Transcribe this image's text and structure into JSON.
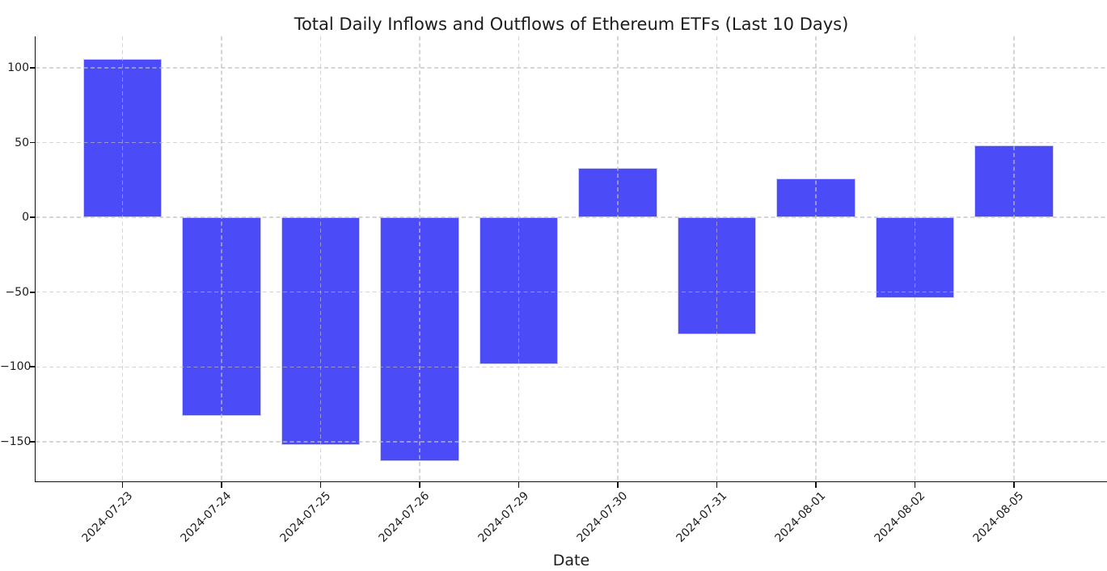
{
  "chart_data": {
    "type": "bar",
    "title": "Total Daily Inflows and Outflows of Ethereum ETFs (Last 10 Days)",
    "xlabel": "Date",
    "ylabel": "",
    "categories": [
      "2024-07-23",
      "2024-07-24",
      "2024-07-25",
      "2024-07-26",
      "2024-07-29",
      "2024-07-30",
      "2024-07-31",
      "2024-08-01",
      "2024-08-02",
      "2024-08-05"
    ],
    "values": [
      106,
      -133,
      -152,
      -163,
      -98,
      33,
      -78,
      26,
      -54,
      48
    ],
    "yticks": [
      100,
      50,
      0,
      -50,
      -100,
      -150
    ],
    "ytick_labels": [
      "100",
      "50",
      "0",
      "−50",
      "−100",
      "−150"
    ],
    "ylim": [
      -177,
      121
    ],
    "grid": true,
    "grid_linestyle": "dashed",
    "legend": "none",
    "bar_color": "#4B4BF8",
    "grid_color": "#D4D4D4",
    "axis_color": "#111111"
  }
}
